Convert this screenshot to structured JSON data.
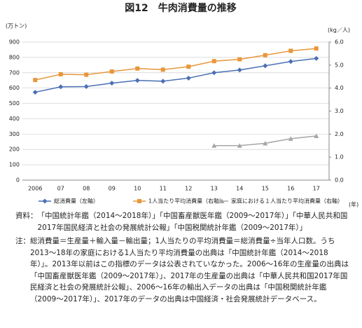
{
  "chart_data": {
    "type": "line",
    "title": "図12　牛肉消費量の推移",
    "y_label": "(万トン)",
    "y2_label": "(kg／人)",
    "x_label": "(年)",
    "categories": [
      "2006",
      "07",
      "08",
      "09",
      "10",
      "11",
      "12",
      "13",
      "14",
      "15",
      "16",
      "17"
    ],
    "series": [
      {
        "name": "総消費量（左軸）",
        "color": "#4a6fb5",
        "marker": "diamond",
        "values": [
          573,
          608,
          610,
          632,
          650,
          645,
          665,
          700,
          718,
          745,
          773,
          793
        ]
      },
      {
        "name": "1人当たり平均消費量（右軸）",
        "color": "#e8963a",
        "marker": "square",
        "axis": "y2",
        "values": [
          4.35,
          4.6,
          4.58,
          4.72,
          4.85,
          4.8,
          4.93,
          5.17,
          5.25,
          5.43,
          5.62,
          5.72
        ]
      },
      {
        "name": "家庭における１人当たり平均消費量（右軸）",
        "color": "#a6a6a6",
        "marker": "triangle",
        "axis": "y2",
        "values": [
          null,
          null,
          null,
          null,
          null,
          null,
          null,
          1.5,
          1.5,
          1.6,
          1.8,
          1.92
        ]
      }
    ],
    "ylim": [
      0,
      900
    ],
    "yticks": [
      0,
      100,
      200,
      300,
      400,
      500,
      600,
      700,
      800,
      900
    ],
    "y2lim": [
      0,
      6
    ],
    "y2ticks": [
      {
        "value": 0,
        "label": "0.0"
      },
      {
        "value": 1,
        "label": "1.0"
      },
      {
        "value": 2,
        "label": "2.0"
      },
      {
        "value": 3,
        "label": "3.0"
      },
      {
        "value": 4,
        "label": "4.0"
      },
      {
        "value": 5,
        "label": "5.0"
      },
      {
        "value": 6,
        "label": "6.0"
      }
    ],
    "grid": true
  },
  "notes": {
    "source_label": "資料：",
    "source": "「中国統計年鑑（2014～2018年）」「中国畜産獣医年鑑（2009～2017年）」「中華人民共和国2017年国民経済と社会の発展統計公報」「中国税関統計年鑑（2009～2017年）」",
    "note_label": "注：",
    "note": "総消費量＝生産量＋輸入量－輸出量；1人当たりの平均消費量＝総消費量÷当年人口数。うち2013～18年の家庭における1人当たり平均消費量の出典は「中国統計年鑑（2014～2018年）」。2013年以前はこの指標のデータは公表されていなかった。2006～16年の生産量の出典は「中国畜産獣医年鑑（2009～2017年）」、2017年の生産量の出典は「中華人民共和国2017年国民経済と社会の発展統計公報」、2006～16年の輸出入データの出典は「中国税関統計年鑑（2009～2017年）」、2017年のデータの出典は中国経済・社会発展統計データベース。"
  }
}
